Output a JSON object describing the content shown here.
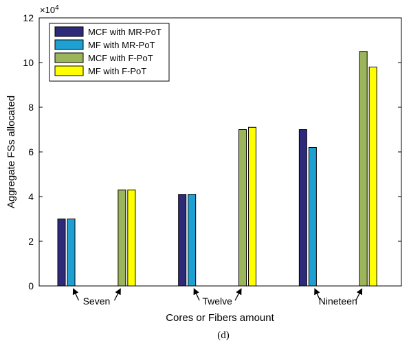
{
  "chart_data": {
    "type": "bar",
    "categories": [
      "Seven",
      "Twelve",
      "Nineteen"
    ],
    "group_labels": [
      "Seven",
      "Twelve",
      "Nineteen"
    ],
    "xlabel": "Cores or Fibers amount",
    "ylabel": "Aggregate FSs allocated",
    "caption": "(d)",
    "y_exponent_label": "×10",
    "y_exponent_power": "4",
    "ylim": [
      0,
      12
    ],
    "yticks": [
      "0",
      "2",
      "4",
      "6",
      "8",
      "10",
      "12"
    ],
    "grid": false,
    "legend_position": "top-left",
    "series": [
      {
        "name": "MCF with MR-PoT",
        "color": "#2e2a7a",
        "values": [
          3.0,
          4.1,
          7.0
        ]
      },
      {
        "name": "MF with MR-PoT",
        "color": "#1ea0d2",
        "values": [
          3.0,
          4.1,
          6.2
        ]
      },
      {
        "name": "MCF with F-PoT",
        "color": "#9cb45a",
        "values": [
          4.3,
          7.0,
          10.5
        ]
      },
      {
        "name": "MF with F-PoT",
        "color": "#ffff00",
        "values": [
          4.3,
          7.1,
          9.8
        ]
      }
    ]
  }
}
